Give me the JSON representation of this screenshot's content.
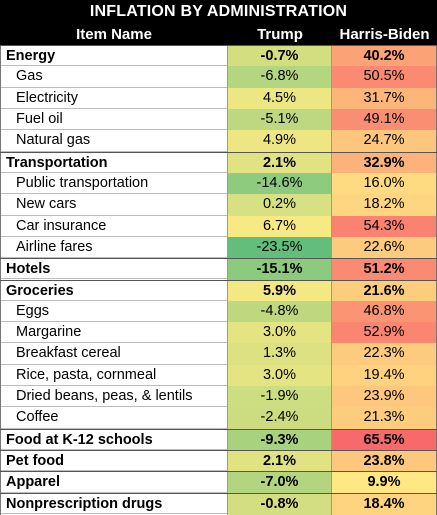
{
  "chart_data": {
    "type": "table",
    "title": "INFLATION BY ADMINISTRATION",
    "columns": [
      "Item Name",
      "Trump",
      "Harris-Biden"
    ],
    "rows": [
      {
        "name": "Energy",
        "level": "category",
        "trump": "-0.7%",
        "harris_biden": "40.2%",
        "trump_value": -0.7,
        "harris_biden_value": 40.2
      },
      {
        "name": "Gas",
        "level": "item",
        "trump": "-6.8%",
        "harris_biden": "50.5%",
        "trump_value": -6.8,
        "harris_biden_value": 50.5
      },
      {
        "name": "Electricity",
        "level": "item",
        "trump": "4.5%",
        "harris_biden": "31.7%",
        "trump_value": 4.5,
        "harris_biden_value": 31.7
      },
      {
        "name": "Fuel oil",
        "level": "item",
        "trump": "-5.1%",
        "harris_biden": "49.1%",
        "trump_value": -5.1,
        "harris_biden_value": 49.1
      },
      {
        "name": "Natural gas",
        "level": "item",
        "trump": "4.9%",
        "harris_biden": "24.7%",
        "trump_value": 4.9,
        "harris_biden_value": 24.7
      },
      {
        "name": "Transportation",
        "level": "category",
        "trump": "2.1%",
        "harris_biden": "32.9%",
        "trump_value": 2.1,
        "harris_biden_value": 32.9
      },
      {
        "name": "Public transportation",
        "level": "item",
        "trump": "-14.6%",
        "harris_biden": "16.0%",
        "trump_value": -14.6,
        "harris_biden_value": 16.0
      },
      {
        "name": "New cars",
        "level": "item",
        "trump": "0.2%",
        "harris_biden": "18.2%",
        "trump_value": 0.2,
        "harris_biden_value": 18.2
      },
      {
        "name": "Car insurance",
        "level": "item",
        "trump": "6.7%",
        "harris_biden": "54.3%",
        "trump_value": 6.7,
        "harris_biden_value": 54.3
      },
      {
        "name": "Airline fares",
        "level": "item",
        "trump": "-23.5%",
        "harris_biden": "22.6%",
        "trump_value": -23.5,
        "harris_biden_value": 22.6
      },
      {
        "name": "Hotels",
        "level": "category",
        "trump": "-15.1%",
        "harris_biden": "51.2%",
        "trump_value": -15.1,
        "harris_biden_value": 51.2
      },
      {
        "name": "Groceries",
        "level": "category",
        "trump": "5.9%",
        "harris_biden": "21.6%",
        "trump_value": 5.9,
        "harris_biden_value": 21.6
      },
      {
        "name": "Eggs",
        "level": "item",
        "trump": "-4.8%",
        "harris_biden": "46.8%",
        "trump_value": -4.8,
        "harris_biden_value": 46.8
      },
      {
        "name": "Margarine",
        "level": "item",
        "trump": "3.0%",
        "harris_biden": "52.9%",
        "trump_value": 3.0,
        "harris_biden_value": 52.9
      },
      {
        "name": "Breakfast cereal",
        "level": "item",
        "trump": "1.3%",
        "harris_biden": "22.3%",
        "trump_value": 1.3,
        "harris_biden_value": 22.3
      },
      {
        "name": "Rice, pasta, cornmeal",
        "level": "item",
        "trump": "3.0%",
        "harris_biden": "19.4%",
        "trump_value": 3.0,
        "harris_biden_value": 19.4
      },
      {
        "name": "Dried beans, peas, & lentils",
        "level": "item",
        "trump": "-1.9%",
        "harris_biden": "23.9%",
        "trump_value": -1.9,
        "harris_biden_value": 23.9
      },
      {
        "name": "Coffee",
        "level": "item",
        "trump": "-2.4%",
        "harris_biden": "21.3%",
        "trump_value": -2.4,
        "harris_biden_value": 21.3
      },
      {
        "name": "Food at K-12 schools",
        "level": "category",
        "trump": "-9.3%",
        "harris_biden": "65.5%",
        "trump_value": -9.3,
        "harris_biden_value": 65.5
      },
      {
        "name": "Pet food",
        "level": "category",
        "trump": "2.1%",
        "harris_biden": "23.8%",
        "trump_value": 2.1,
        "harris_biden_value": 23.8
      },
      {
        "name": "Apparel",
        "level": "category",
        "trump": "-7.0%",
        "harris_biden": "9.9%",
        "trump_value": -7.0,
        "harris_biden_value": 9.9
      },
      {
        "name": "Nonprescription drugs",
        "level": "category",
        "trump": "-0.8%",
        "harris_biden": "18.4%",
        "trump_value": -0.8,
        "harris_biden_value": 18.4
      }
    ],
    "color_scale": {
      "low": "#63be7b",
      "mid": "#ffeb84",
      "high": "#f8696b"
    }
  }
}
